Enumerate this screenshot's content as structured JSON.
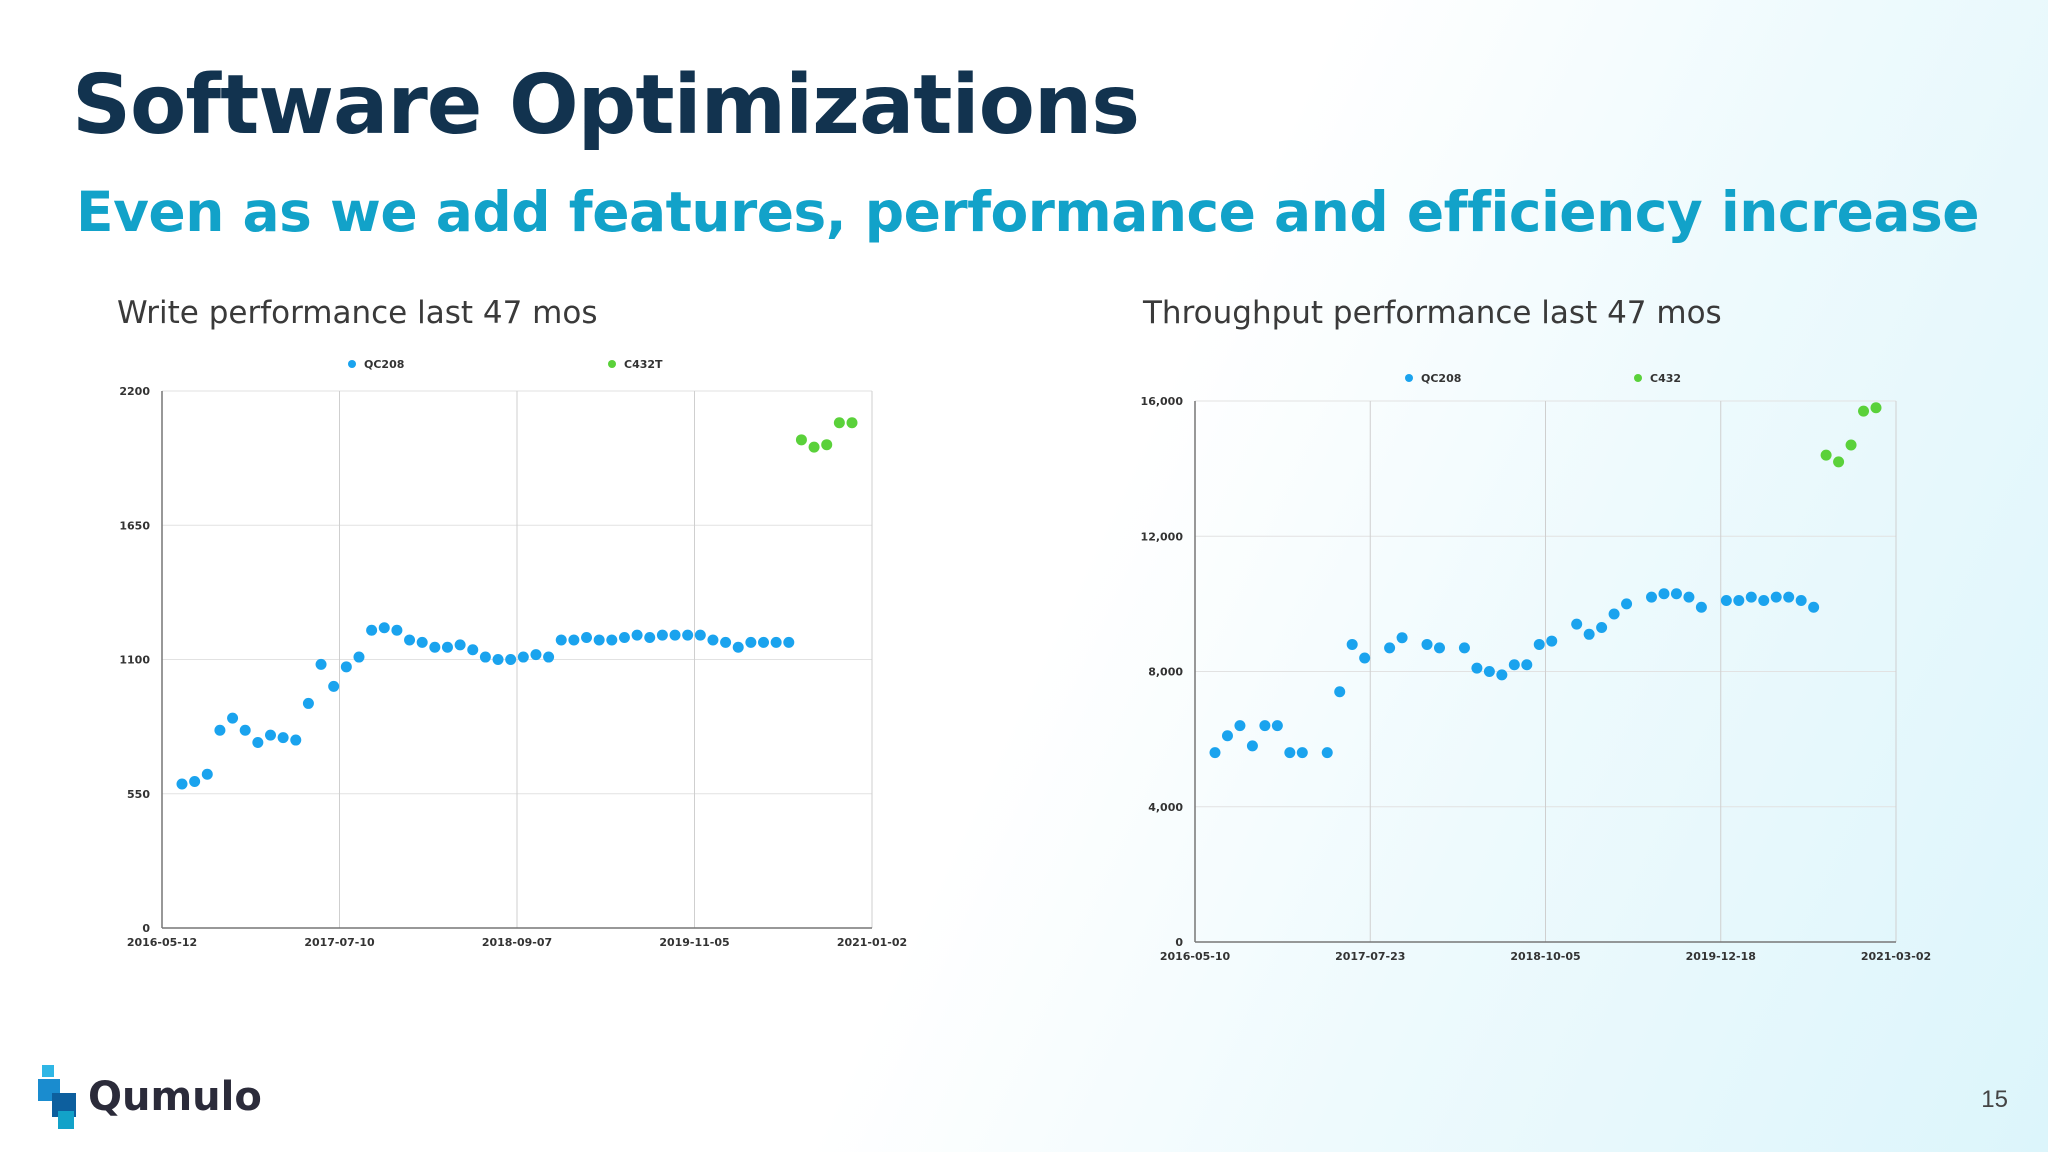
{
  "slide": {
    "title": "Software Optimizations",
    "subtitle": "Even as we add features, performance and efficiency increase",
    "page_number": "15",
    "logo_text": "Qumulo"
  },
  "colors": {
    "series_1": "#1aa3ee",
    "series_2": "#5ad13a",
    "title": "#12334f",
    "subtitle": "#12a2c9"
  },
  "chart_data": [
    {
      "type": "scatter",
      "caption": "Write performance last 47 mos",
      "ylim": [
        0,
        2200
      ],
      "yticks": [
        "0",
        "550",
        "1100",
        "1650",
        "2200"
      ],
      "xticks": [
        "2016-05-12",
        "2017-07-10",
        "2018-09-07",
        "2019-11-05",
        "2021-01-02"
      ],
      "grid": true,
      "legend_position": "top",
      "series": [
        {
          "name": "QC208",
          "color": "#1aa3ee",
          "values": [
            590,
            600,
            630,
            810,
            860,
            810,
            760,
            790,
            780,
            770,
            920,
            1080,
            990,
            1070,
            1110,
            1220,
            1230,
            1220,
            1180,
            1170,
            1150,
            1150,
            1160,
            1140,
            1110,
            1100,
            1100,
            1110,
            1120,
            1110,
            1180,
            1180,
            1190,
            1180,
            1180,
            1190,
            1200,
            1190,
            1200,
            1200,
            1200,
            1200,
            1180,
            1170,
            1150,
            1170,
            1170,
            1170,
            1170
          ]
        },
        {
          "name": "C432T",
          "color": "#5ad13a",
          "values": [
            2000,
            1970,
            1980,
            2070,
            2070
          ]
        }
      ]
    },
    {
      "type": "scatter",
      "caption": "Throughput performance last 47 mos",
      "ylim": [
        0,
        16000
      ],
      "yticks": [
        "0",
        "4,000",
        "8,000",
        "12,000",
        "16,000"
      ],
      "xticks": [
        "2016-05-10",
        "2017-07-23",
        "2018-10-05",
        "2019-12-18",
        "2021-03-02"
      ],
      "grid": true,
      "legend_position": "top",
      "series": [
        {
          "name": "QC208",
          "color": "#1aa3ee",
          "values": [
            5600,
            6100,
            6400,
            5800,
            6400,
            6400,
            5600,
            5600,
            null,
            5600,
            7400,
            8800,
            8400,
            null,
            8700,
            9000,
            null,
            8800,
            8700,
            null,
            8700,
            8100,
            8000,
            7900,
            8200,
            8200,
            8800,
            8900,
            null,
            9400,
            9100,
            9300,
            9700,
            10000,
            null,
            10200,
            10300,
            10300,
            10200,
            9900,
            null,
            10100,
            10100,
            10200,
            10100,
            10200,
            10200,
            10100,
            9900
          ]
        },
        {
          "name": "C432",
          "color": "#5ad13a",
          "values": [
            14400,
            14200,
            14700,
            15700,
            15800
          ]
        }
      ]
    }
  ]
}
